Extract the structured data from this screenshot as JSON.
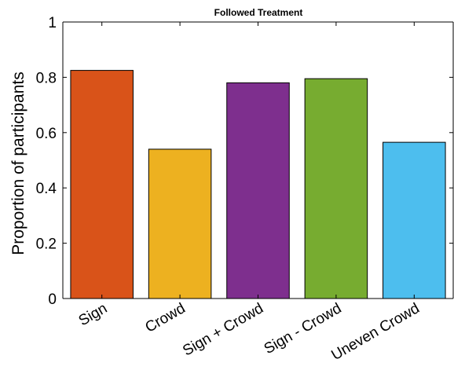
{
  "chart_data": {
    "type": "bar",
    "title": "Followed Treatment",
    "xlabel": "",
    "ylabel": "Proportion of participants",
    "categories": [
      "Sign",
      "Crowd",
      "Sign + Crowd",
      "Sign - Crowd",
      "Uneven Crowd"
    ],
    "values": [
      0.825,
      0.54,
      0.78,
      0.795,
      0.565
    ],
    "colors": [
      "#D95319",
      "#EDB120",
      "#7E2F8E",
      "#77AC30",
      "#4DBEEE"
    ],
    "ylim": [
      0,
      1
    ],
    "yticks": [
      0,
      0.2,
      0.4,
      0.6,
      0.8,
      1
    ],
    "ytick_labels": [
      "0",
      "0.2",
      "0.4",
      "0.6",
      "0.8",
      "1"
    ],
    "grid": false,
    "legend": "none"
  }
}
